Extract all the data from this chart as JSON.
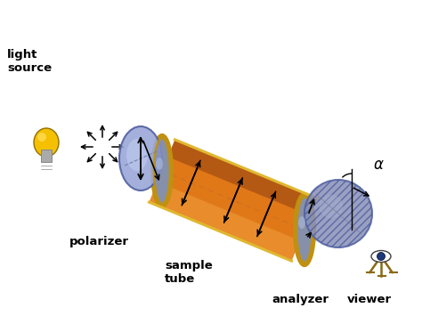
{
  "bg_color": "#ffffff",
  "labels": {
    "light_source": "light\nsource",
    "polarizer": "polarizer",
    "sample_tube": "sample\ntube",
    "analyzer": "analyzer",
    "viewer": "viewer",
    "alpha": "α"
  },
  "colors": {
    "bulb_yellow": "#f5c000",
    "bulb_yellow2": "#ffe060",
    "bulb_base": "#bbbbbb",
    "polarizer_disk": "#9aa8d8",
    "polarizer_disk_light": "#c0ccee",
    "polarizer_disk_edge": "#5060a0",
    "tube_orange": "#e07818",
    "tube_orange_light": "#f0a040",
    "tube_orange_dark": "#904010",
    "tube_gold": "#c09010",
    "tube_gold2": "#e0b830",
    "tube_cap": "#8090c0",
    "tube_cap_light": "#b0c0e0",
    "analyzer_disk": "#8890b8",
    "analyzer_disk_light": "#a8b4d0",
    "arrow_color": "#111111",
    "label_color": "#000000",
    "dashed_orange": "#d07020",
    "alpha_color": "#000000"
  },
  "figsize": [
    4.74,
    3.55
  ],
  "dpi": 100
}
